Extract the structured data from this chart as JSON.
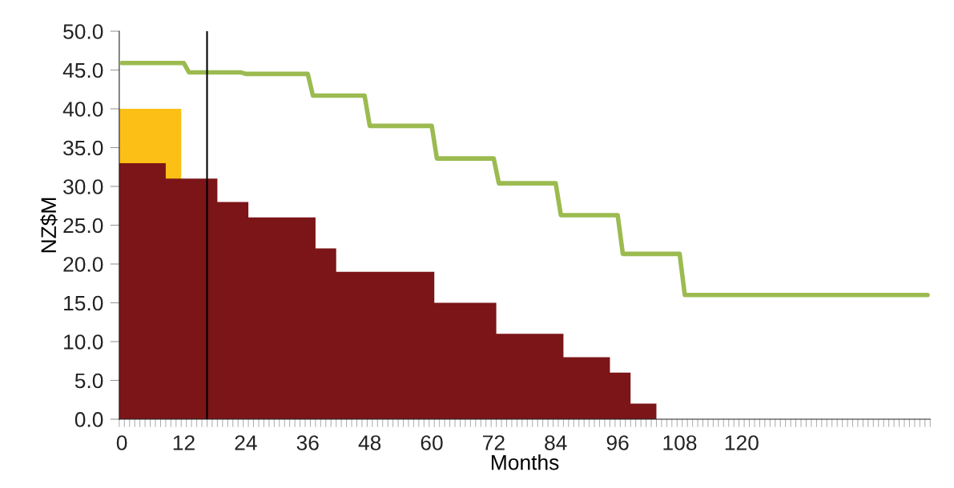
{
  "chart_data": {
    "type": "area",
    "xlabel": "Months",
    "ylabel": "NZ$M",
    "series": [
      {
        "color": "#fcbf15",
        "x": [
          0,
          12
        ],
        "values": [
          40,
          40
        ]
      },
      {
        "color": "#7b1518",
        "x": [
          0,
          9,
          9,
          19,
          19,
          25,
          25,
          38,
          38,
          42,
          42,
          61,
          61,
          73,
          73,
          86,
          86,
          95,
          95,
          99,
          99,
          104
        ],
        "values": [
          33,
          33,
          31,
          31,
          28,
          28,
          26,
          26,
          22,
          22,
          19,
          19,
          15,
          15,
          11,
          11,
          8,
          8,
          6,
          6,
          2,
          2
        ]
      },
      {
        "type": "line",
        "color": "#9bbb50",
        "x": [
          0.5,
          12.5,
          13.5,
          23.5,
          24.5,
          36.5,
          37.5,
          47.5,
          48.5,
          60.5,
          61.5,
          72.5,
          73.5,
          84.5,
          85.5,
          96.5,
          97.5,
          108.5,
          109.5,
          156.5
        ],
        "values": [
          45.9,
          45.9,
          44.7,
          44.7,
          44.5,
          44.5,
          41.7,
          41.7,
          37.8,
          37.8,
          33.6,
          33.6,
          30.4,
          30.4,
          26.3,
          26.3,
          21.3,
          21.3,
          16.0,
          16.0
        ]
      }
    ],
    "ref_lines": [
      {
        "axis": "x",
        "value": 17,
        "label": null,
        "color": "#000000"
      }
    ],
    "xlim": [
      0,
      157
    ],
    "xticks": [
      {
        "value": 0.5,
        "label": "0"
      },
      {
        "value": 12.5,
        "label": "12"
      },
      {
        "value": 24.5,
        "label": "24"
      },
      {
        "value": 36.5,
        "label": "36"
      },
      {
        "value": 48.5,
        "label": "48"
      },
      {
        "value": 60.5,
        "label": "60"
      },
      {
        "value": 72.5,
        "label": "72"
      },
      {
        "value": 84.5,
        "label": "84"
      },
      {
        "value": 96.5,
        "label": "96"
      },
      {
        "value": 108.5,
        "label": "108"
      },
      {
        "value": 120.5,
        "label": "120"
      },
      {
        "value": 0,
        "label": null
      },
      {
        "value": 1,
        "label": null
      },
      {
        "value": 2,
        "label": null
      },
      {
        "value": 3,
        "label": null
      },
      {
        "value": 4,
        "label": null
      },
      {
        "value": 5,
        "label": null
      },
      {
        "value": 6,
        "label": null
      },
      {
        "value": 7,
        "label": null
      },
      {
        "value": 8,
        "label": null
      },
      {
        "value": 9,
        "label": null
      },
      {
        "value": 10,
        "label": null
      },
      {
        "value": 11,
        "label": null
      },
      {
        "value": 12,
        "label": null
      },
      {
        "value": 13,
        "label": null
      },
      {
        "value": 14,
        "label": null
      },
      {
        "value": 15,
        "label": null
      },
      {
        "value": 16,
        "label": null
      },
      {
        "value": 17,
        "label": null
      },
      {
        "value": 18,
        "label": null
      },
      {
        "value": 19,
        "label": null
      },
      {
        "value": 20,
        "label": null
      },
      {
        "value": 21,
        "label": null
      },
      {
        "value": 22,
        "label": null
      },
      {
        "value": 23,
        "label": null
      },
      {
        "value": 24,
        "label": null
      },
      {
        "value": 25,
        "label": null
      },
      {
        "value": 26,
        "label": null
      },
      {
        "value": 27,
        "label": null
      },
      {
        "value": 28,
        "label": null
      },
      {
        "value": 29,
        "label": null
      },
      {
        "value": 30,
        "label": null
      },
      {
        "value": 31,
        "label": null
      },
      {
        "value": 32,
        "label": null
      },
      {
        "value": 33,
        "label": null
      },
      {
        "value": 34,
        "label": null
      },
      {
        "value": 35,
        "label": null
      },
      {
        "value": 36,
        "label": null
      },
      {
        "value": 37,
        "label": null
      },
      {
        "value": 38,
        "label": null
      },
      {
        "value": 39,
        "label": null
      },
      {
        "value": 40,
        "label": null
      },
      {
        "value": 41,
        "label": null
      },
      {
        "value": 42,
        "label": null
      },
      {
        "value": 43,
        "label": null
      },
      {
        "value": 44,
        "label": null
      },
      {
        "value": 45,
        "label": null
      },
      {
        "value": 46,
        "label": null
      },
      {
        "value": 47,
        "label": null
      },
      {
        "value": 48,
        "label": null
      },
      {
        "value": 49,
        "label": null
      },
      {
        "value": 50,
        "label": null
      },
      {
        "value": 51,
        "label": null
      },
      {
        "value": 52,
        "label": null
      },
      {
        "value": 53,
        "label": null
      },
      {
        "value": 54,
        "label": null
      },
      {
        "value": 55,
        "label": null
      },
      {
        "value": 56,
        "label": null
      },
      {
        "value": 57,
        "label": null
      },
      {
        "value": 58,
        "label": null
      },
      {
        "value": 59,
        "label": null
      },
      {
        "value": 60,
        "label": null
      },
      {
        "value": 61,
        "label": null
      },
      {
        "value": 62,
        "label": null
      },
      {
        "value": 63,
        "label": null
      },
      {
        "value": 64,
        "label": null
      },
      {
        "value": 65,
        "label": null
      },
      {
        "value": 66,
        "label": null
      },
      {
        "value": 67,
        "label": null
      },
      {
        "value": 68,
        "label": null
      },
      {
        "value": 69,
        "label": null
      },
      {
        "value": 70,
        "label": null
      },
      {
        "value": 71,
        "label": null
      },
      {
        "value": 72,
        "label": null
      },
      {
        "value": 73,
        "label": null
      },
      {
        "value": 74,
        "label": null
      },
      {
        "value": 75,
        "label": null
      },
      {
        "value": 76,
        "label": null
      },
      {
        "value": 77,
        "label": null
      },
      {
        "value": 78,
        "label": null
      },
      {
        "value": 79,
        "label": null
      },
      {
        "value": 80,
        "label": null
      },
      {
        "value": 81,
        "label": null
      },
      {
        "value": 82,
        "label": null
      },
      {
        "value": 83,
        "label": null
      },
      {
        "value": 84,
        "label": null
      },
      {
        "value": 85,
        "label": null
      },
      {
        "value": 86,
        "label": null
      },
      {
        "value": 87,
        "label": null
      },
      {
        "value": 88,
        "label": null
      },
      {
        "value": 89,
        "label": null
      },
      {
        "value": 90,
        "label": null
      },
      {
        "value": 91,
        "label": null
      },
      {
        "value": 92,
        "label": null
      },
      {
        "value": 93,
        "label": null
      },
      {
        "value": 94,
        "label": null
      },
      {
        "value": 95,
        "label": null
      },
      {
        "value": 96,
        "label": null
      },
      {
        "value": 97,
        "label": null
      },
      {
        "value": 98,
        "label": null
      },
      {
        "value": 99,
        "label": null
      },
      {
        "value": 100,
        "label": null
      },
      {
        "value": 101,
        "label": null
      },
      {
        "value": 102,
        "label": null
      },
      {
        "value": 103,
        "label": null
      },
      {
        "value": 104,
        "label": null
      },
      {
        "value": 105,
        "label": null
      },
      {
        "value": 106,
        "label": null
      },
      {
        "value": 107,
        "label": null
      },
      {
        "value": 108,
        "label": null
      },
      {
        "value": 109,
        "label": null
      },
      {
        "value": 110,
        "label": null
      },
      {
        "value": 111,
        "label": null
      },
      {
        "value": 112,
        "label": null
      },
      {
        "value": 113,
        "label": null
      },
      {
        "value": 114,
        "label": null
      },
      {
        "value": 115,
        "label": null
      },
      {
        "value": 116,
        "label": null
      },
      {
        "value": 117,
        "label": null
      },
      {
        "value": 118,
        "label": null
      },
      {
        "value": 119,
        "label": null
      },
      {
        "value": 120,
        "label": null
      },
      {
        "value": 121,
        "label": null
      },
      {
        "value": 122,
        "label": null
      },
      {
        "value": 123,
        "label": null
      },
      {
        "value": 124,
        "label": null
      },
      {
        "value": 125,
        "label": null
      },
      {
        "value": 126,
        "label": null
      },
      {
        "value": 127,
        "label": null
      },
      {
        "value": 128,
        "label": null
      },
      {
        "value": 129,
        "label": null
      },
      {
        "value": 130,
        "label": null
      },
      {
        "value": 131,
        "label": null
      },
      {
        "value": 132,
        "label": null
      },
      {
        "value": 133,
        "label": null
      },
      {
        "value": 134,
        "label": null
      },
      {
        "value": 135,
        "label": null
      },
      {
        "value": 136,
        "label": null
      },
      {
        "value": 137,
        "label": null
      },
      {
        "value": 138,
        "label": null
      },
      {
        "value": 139,
        "label": null
      },
      {
        "value": 140,
        "label": null
      },
      {
        "value": 141,
        "label": null
      },
      {
        "value": 142,
        "label": null
      },
      {
        "value": 143,
        "label": null
      },
      {
        "value": 144,
        "label": null
      },
      {
        "value": 145,
        "label": null
      },
      {
        "value": 146,
        "label": null
      },
      {
        "value": 147,
        "label": null
      },
      {
        "value": 148,
        "label": null
      },
      {
        "value": 149,
        "label": null
      },
      {
        "value": 150,
        "label": null
      },
      {
        "value": 151,
        "label": null
      },
      {
        "value": 152,
        "label": null
      },
      {
        "value": 153,
        "label": null
      },
      {
        "value": 154,
        "label": null
      },
      {
        "value": 155,
        "label": null
      },
      {
        "value": 156,
        "label": null
      },
      {
        "value": 157,
        "label": null
      }
    ],
    "ylim": [
      0,
      50
    ],
    "yticks": [
      {
        "value": 0,
        "label": "0.0"
      },
      {
        "value": 5,
        "label": "5.0"
      },
      {
        "value": 10,
        "label": "10.0"
      },
      {
        "value": 15,
        "label": "15.0"
      },
      {
        "value": 20,
        "label": "20.0"
      },
      {
        "value": 25,
        "label": "25.0"
      },
      {
        "value": 30,
        "label": "30.0"
      },
      {
        "value": 35,
        "label": "35.0"
      },
      {
        "value": 40,
        "label": "40.0"
      },
      {
        "value": 45,
        "label": "45.0"
      },
      {
        "value": 50,
        "label": "50.0"
      }
    ],
    "grid": false,
    "legend": false
  }
}
